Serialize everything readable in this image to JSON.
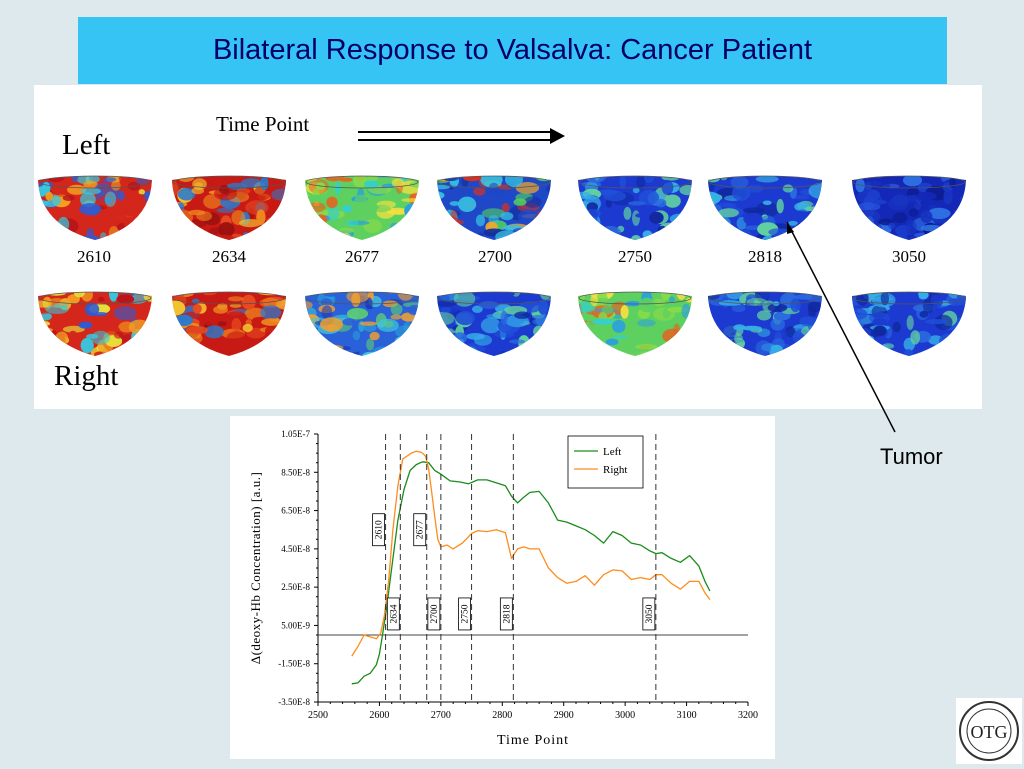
{
  "slide": {
    "title": "Bilateral Response to Valsalva: Cancer Patient",
    "left_label": "Left",
    "right_label": "Right",
    "time_point_label": "Time Point",
    "tumor_label": "Tumor"
  },
  "images": {
    "top_time_points": [
      "2610",
      "2634",
      "2677",
      "2700",
      "2750",
      "2818",
      "3050"
    ],
    "left_row_colors": [
      "mixed-red",
      "red",
      "green",
      "mixed-blue",
      "blue",
      "blue",
      "deep-blue"
    ],
    "right_row_colors": [
      "mixed-red",
      "red",
      "green-blue",
      "blue",
      "green",
      "blue",
      "blue"
    ]
  },
  "logo": {
    "text": "OTG"
  },
  "chart_data": {
    "type": "line",
    "xlabel": "Time Point",
    "ylabel": "Δ(deoxy-Hb Concentration) [a.u.]",
    "xlim": [
      2500,
      3200
    ],
    "ylim": [
      -3.5e-08,
      1.05e-07
    ],
    "x_ticks": [
      "2500",
      "2600",
      "2700",
      "2800",
      "2900",
      "3000",
      "3100",
      "3200"
    ],
    "y_ticks": [
      "1.05E-7",
      "8.50E-8",
      "6.50E-8",
      "4.50E-8",
      "2.50E-8",
      "5.00E-9",
      "-1.50E-8",
      "-3.50E-8"
    ],
    "legend_position": "top-right",
    "markers": [
      {
        "x": 2610,
        "label": "2610",
        "label_y": 5.5e-08
      },
      {
        "x": 2634,
        "label": "2634",
        "label_y": 1.1e-08
      },
      {
        "x": 2677,
        "label": "2677",
        "label_y": 5.5e-08
      },
      {
        "x": 2700,
        "label": "2700",
        "label_y": 1.1e-08
      },
      {
        "x": 2750,
        "label": "2750",
        "label_y": 1.1e-08
      },
      {
        "x": 2818,
        "label": "2818",
        "label_y": 1.1e-08
      },
      {
        "x": 3050,
        "label": "3050",
        "label_y": 1.1e-08
      }
    ],
    "series": [
      {
        "name": "Left",
        "color": "#1a8c1a",
        "x": [
          2555,
          2565,
          2575,
          2585,
          2595,
          2600,
          2605,
          2612,
          2620,
          2630,
          2640,
          2650,
          2660,
          2670,
          2680,
          2690,
          2700,
          2715,
          2730,
          2745,
          2760,
          2775,
          2790,
          2805,
          2815,
          2825,
          2835,
          2845,
          2860,
          2875,
          2890,
          2905,
          2920,
          2935,
          2950,
          2965,
          2980,
          2995,
          3010,
          3025,
          3040,
          3050,
          3060,
          3075,
          3090,
          3105,
          3120,
          3130,
          3138
        ],
        "y": [
          -2.55e-08,
          -2.5e-08,
          -2.15e-08,
          -2e-08,
          -1.55e-08,
          -1e-08,
          0.0,
          1.5e-08,
          3.5e-08,
          6e-08,
          7.6e-08,
          8.6e-08,
          8.9e-08,
          9.05e-08,
          9e-08,
          8.6e-08,
          8.4e-08,
          8.05e-08,
          8e-08,
          7.9e-08,
          8.1e-08,
          8.1e-08,
          7.95e-08,
          7.8e-08,
          7.25e-08,
          6.9e-08,
          7.2e-08,
          7.45e-08,
          7.5e-08,
          6.9e-08,
          6e-08,
          5.9e-08,
          5.7e-08,
          5.5e-08,
          5.2e-08,
          4.8e-08,
          5.4e-08,
          5.2e-08,
          4.8e-08,
          4.7e-08,
          4.4e-08,
          4.25e-08,
          4.3e-08,
          4e-08,
          3.8e-08,
          4.15e-08,
          3.6e-08,
          2.8e-08,
          2.3e-08
        ]
      },
      {
        "name": "Right",
        "color": "#ff8c1a",
        "x": [
          2555,
          2565,
          2575,
          2585,
          2595,
          2602,
          2608,
          2615,
          2622,
          2630,
          2638,
          2645,
          2652,
          2660,
          2668,
          2675,
          2680,
          2685,
          2690,
          2695,
          2700,
          2710,
          2720,
          2735,
          2750,
          2760,
          2775,
          2790,
          2805,
          2815,
          2825,
          2835,
          2845,
          2860,
          2875,
          2890,
          2905,
          2920,
          2935,
          2950,
          2965,
          2980,
          2995,
          3010,
          3025,
          3040,
          3050,
          3060,
          3075,
          3090,
          3105,
          3120,
          3130,
          3138
        ],
        "y": [
          -1.1e-08,
          -6e-09,
          0.0,
          -1e-09,
          -2e-09,
          1e-09,
          1e-08,
          2.8e-08,
          5.5e-08,
          7.8e-08,
          9.2e-08,
          9.35e-08,
          9.5e-08,
          9.6e-08,
          9.55e-08,
          9.35e-08,
          8.7e-08,
          7.5e-08,
          6.2e-08,
          5e-08,
          4.6e-08,
          4.7e-08,
          4.5e-08,
          4.8e-08,
          5.3e-08,
          5.45e-08,
          5.4e-08,
          5.5e-08,
          5.35e-08,
          4e-08,
          4.5e-08,
          4.6e-08,
          4.5e-08,
          4.5e-08,
          3.5e-08,
          3e-08,
          2.7e-08,
          2.8e-08,
          3.1e-08,
          2.6e-08,
          3.15e-08,
          3.4e-08,
          3.35e-08,
          2.9e-08,
          3e-08,
          2.9e-08,
          3.15e-08,
          3.15e-08,
          2.7e-08,
          2.4e-08,
          2.8e-08,
          2.8e-08,
          2.2e-08,
          1.85e-08
        ]
      }
    ]
  }
}
